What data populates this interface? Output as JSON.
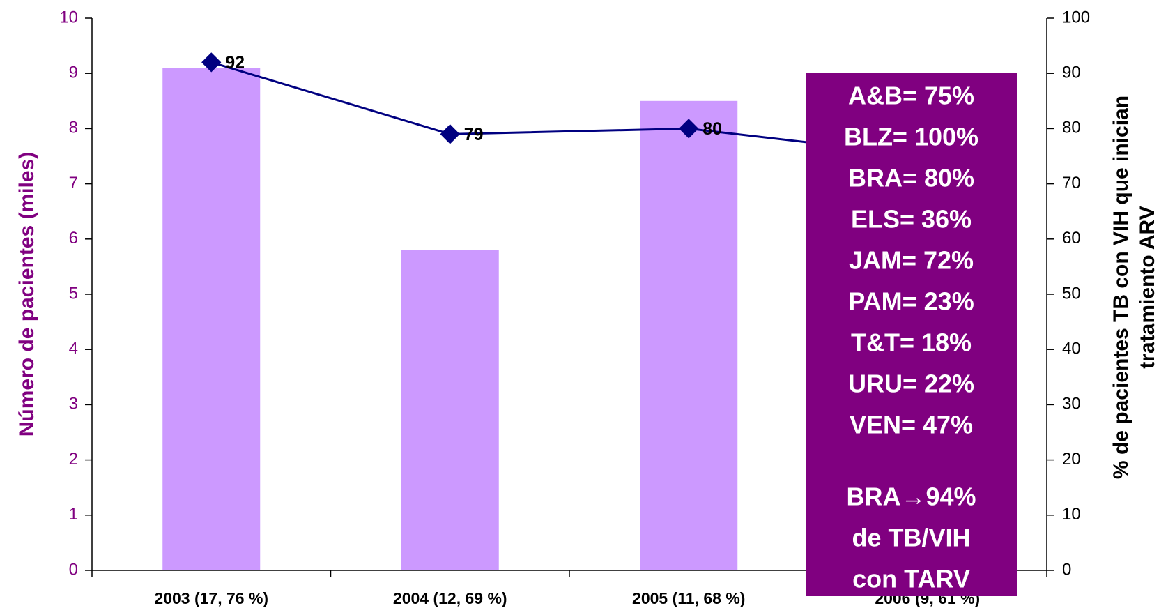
{
  "chart_data": {
    "type": "bar_line",
    "categories": [
      "2003 (17, 76 %)",
      "2004 (12, 69 %)",
      "2005 (11, 68 %)",
      "2006 (9, 61 %)"
    ],
    "series": [
      {
        "color": "#cc99ff",
        "values": [
          9.1,
          5.8,
          8.5,
          null
        ]
      },
      {
        "color": "#000080",
        "axis": "y2",
        "values": [
          92,
          79,
          80,
          75
        ]
      }
    ],
    "ylabel": "Número de pacientes (miles)",
    "y2label": [
      "% de pacientes TB con VIH que inician",
      "tratamiento ARV"
    ],
    "ylim": [
      0,
      10
    ],
    "yticks": [
      0,
      1,
      2,
      3,
      4,
      5,
      6,
      7,
      8,
      9,
      10
    ],
    "y2lim": [
      0,
      100
    ],
    "y2ticks": [
      0,
      10,
      20,
      30,
      40,
      50,
      60,
      70,
      80,
      90,
      100
    ],
    "annotation": {
      "color": "#800080",
      "lines": [
        "A&B= 75%",
        "BLZ= 100%",
        "BRA= 80%",
        "ELS= 36%",
        "JAM= 72%",
        "PAM= 23%",
        "T&T= 18%",
        "URU= 22%",
        "VEN= 47%"
      ],
      "note": [
        "BRA→94%",
        "de TB/VIH",
        "con TARV"
      ]
    }
  }
}
